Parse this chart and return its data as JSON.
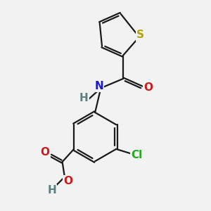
{
  "bg_color": "#f2f2f2",
  "bond_color": "#1a1a1a",
  "bond_width": 1.6,
  "dbo": 0.055,
  "atoms": {
    "S": {
      "color": "#b8a000",
      "fontsize": 11
    },
    "N": {
      "color": "#1a1acc",
      "fontsize": 11
    },
    "O": {
      "color": "#cc1a1a",
      "fontsize": 11
    },
    "Cl": {
      "color": "#22aa22",
      "fontsize": 11
    },
    "H": {
      "color": "#5a8080",
      "fontsize": 11
    }
  },
  "xlim": [
    1.0,
    8.5
  ],
  "ylim": [
    0.5,
    9.5
  ]
}
